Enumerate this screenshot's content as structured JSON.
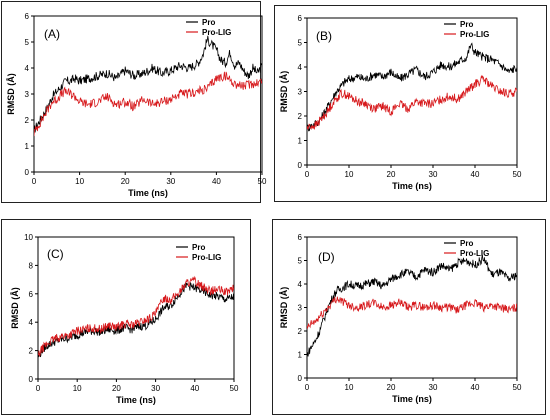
{
  "chart_data": [
    {
      "type": "line",
      "panel_label": "(A)",
      "xlabel": "Time (ns)",
      "ylabel": "RMSD (Å)",
      "xlim": [
        0,
        50
      ],
      "ylim": [
        0,
        6
      ],
      "xticks": [
        0,
        10,
        20,
        30,
        40,
        50
      ],
      "yticks": [
        0,
        1,
        2,
        3,
        4,
        5,
        6
      ],
      "legend": "top-right",
      "series": [
        {
          "name": "Pro",
          "color": "#000000",
          "x": [
            0,
            1,
            2,
            3,
            4,
            5,
            6,
            7,
            8,
            9,
            10,
            12,
            14,
            16,
            18,
            20,
            22,
            24,
            26,
            28,
            30,
            32,
            34,
            36,
            37,
            38,
            39,
            40,
            41,
            42,
            43,
            44,
            45,
            46,
            47,
            48,
            49,
            50
          ],
          "y": [
            1.6,
            1.9,
            2.2,
            2.5,
            2.9,
            3.1,
            3.3,
            3.5,
            3.5,
            3.6,
            3.5,
            3.6,
            3.7,
            3.8,
            3.6,
            3.9,
            3.7,
            3.8,
            4.0,
            3.8,
            3.9,
            4.1,
            4.0,
            4.2,
            4.5,
            5.1,
            4.9,
            4.7,
            4.3,
            4.2,
            4.6,
            4.1,
            4.2,
            3.9,
            3.7,
            4.0,
            3.8,
            4.1
          ]
        },
        {
          "name": "Pro-LIG",
          "color": "#d7191c",
          "x": [
            0,
            1,
            2,
            3,
            4,
            5,
            6,
            7,
            8,
            9,
            10,
            12,
            14,
            16,
            18,
            20,
            22,
            24,
            26,
            28,
            30,
            32,
            34,
            36,
            38,
            40,
            42,
            44,
            46,
            48,
            50
          ],
          "y": [
            1.5,
            1.8,
            2.1,
            2.4,
            2.7,
            2.8,
            3.0,
            3.1,
            3.0,
            2.9,
            2.7,
            2.6,
            2.7,
            2.9,
            2.6,
            2.7,
            2.5,
            2.8,
            2.6,
            2.7,
            2.8,
            3.0,
            3.0,
            3.1,
            3.2,
            3.6,
            3.7,
            3.4,
            3.3,
            3.4,
            3.5
          ]
        }
      ]
    },
    {
      "type": "line",
      "panel_label": "(B)",
      "xlabel": "Time (ns)",
      "ylabel": "RMSD (Å)",
      "xlim": [
        0,
        50
      ],
      "ylim": [
        0,
        6
      ],
      "xticks": [
        0,
        10,
        20,
        30,
        40,
        50
      ],
      "yticks": [
        0,
        1,
        2,
        3,
        4,
        5,
        6
      ],
      "legend": "top-right",
      "series": [
        {
          "name": "Pro",
          "color": "#000000",
          "x": [
            0,
            1,
            2,
            3,
            4,
            5,
            6,
            7,
            8,
            9,
            10,
            12,
            14,
            16,
            18,
            20,
            22,
            24,
            26,
            28,
            30,
            32,
            34,
            36,
            38,
            39,
            40,
            42,
            44,
            46,
            48,
            50
          ],
          "y": [
            1.5,
            1.6,
            1.7,
            1.8,
            2.1,
            2.4,
            2.7,
            3.0,
            3.2,
            3.4,
            3.5,
            3.6,
            3.5,
            3.7,
            3.6,
            3.8,
            3.5,
            3.7,
            3.9,
            3.6,
            3.8,
            4.1,
            4.0,
            4.2,
            4.4,
            4.9,
            4.6,
            4.4,
            4.3,
            4.1,
            3.8,
            4.0
          ]
        },
        {
          "name": "Pro-LIG",
          "color": "#d7191c",
          "x": [
            0,
            1,
            2,
            3,
            4,
            5,
            6,
            7,
            8,
            9,
            10,
            12,
            14,
            16,
            18,
            20,
            22,
            24,
            26,
            28,
            30,
            32,
            34,
            36,
            38,
            40,
            42,
            44,
            46,
            48,
            50
          ],
          "y": [
            1.5,
            1.6,
            1.6,
            1.8,
            2.0,
            2.2,
            2.5,
            2.7,
            2.9,
            2.9,
            2.8,
            2.6,
            2.5,
            2.3,
            2.4,
            2.2,
            2.5,
            2.3,
            2.6,
            2.5,
            2.5,
            2.7,
            2.8,
            2.7,
            3.0,
            3.3,
            3.5,
            3.2,
            3.0,
            2.9,
            3.0
          ]
        }
      ]
    },
    {
      "type": "line",
      "panel_label": "(C)",
      "xlabel": "Time (ns)",
      "ylabel": "RMSD (Å)",
      "xlim": [
        0,
        50
      ],
      "ylim": [
        0,
        10
      ],
      "xticks": [
        0,
        10,
        20,
        30,
        40,
        50
      ],
      "yticks": [
        0,
        2,
        4,
        6,
        8,
        10
      ],
      "legend": "top-right",
      "series": [
        {
          "name": "Pro",
          "color": "#000000",
          "x": [
            0,
            1,
            2,
            4,
            6,
            8,
            10,
            12,
            14,
            16,
            18,
            20,
            22,
            24,
            26,
            28,
            30,
            32,
            34,
            36,
            38,
            40,
            42,
            44,
            46,
            48,
            50
          ],
          "y": [
            1.5,
            2.0,
            2.3,
            2.6,
            2.8,
            2.9,
            3.1,
            3.3,
            3.4,
            3.3,
            3.5,
            3.4,
            3.6,
            3.5,
            3.7,
            3.8,
            4.2,
            5.0,
            5.2,
            6.0,
            6.6,
            6.4,
            6.2,
            5.9,
            5.8,
            5.6,
            5.8
          ]
        },
        {
          "name": "Pro-LIG",
          "color": "#d7191c",
          "x": [
            0,
            1,
            2,
            4,
            6,
            8,
            10,
            12,
            14,
            16,
            18,
            20,
            22,
            24,
            26,
            28,
            30,
            32,
            34,
            36,
            38,
            40,
            42,
            44,
            46,
            48,
            50
          ],
          "y": [
            1.6,
            2.1,
            2.4,
            2.8,
            3.0,
            3.1,
            3.4,
            3.5,
            3.6,
            3.5,
            3.8,
            3.6,
            3.9,
            3.8,
            4.0,
            4.2,
            4.6,
            5.7,
            5.6,
            6.1,
            6.8,
            6.9,
            6.5,
            6.2,
            6.3,
            6.1,
            6.4
          ]
        }
      ]
    },
    {
      "type": "line",
      "panel_label": "(D)",
      "xlabel": "Time (ns)",
      "ylabel": "RMSD (Å)",
      "xlim": [
        0,
        50
      ],
      "ylim": [
        0,
        6
      ],
      "xticks": [
        0,
        10,
        20,
        30,
        40,
        50
      ],
      "yticks": [
        0,
        1,
        2,
        3,
        4,
        5,
        6
      ],
      "legend": "top-right",
      "series": [
        {
          "name": "Pro",
          "color": "#000000",
          "x": [
            0,
            1,
            2,
            3,
            4,
            5,
            6,
            7,
            8,
            9,
            10,
            12,
            14,
            16,
            18,
            20,
            22,
            24,
            26,
            28,
            30,
            32,
            34,
            36,
            38,
            40,
            42,
            44,
            46,
            48,
            50
          ],
          "y": [
            1.0,
            1.3,
            1.6,
            2.0,
            2.5,
            3.0,
            3.4,
            3.7,
            3.8,
            3.9,
            4.0,
            3.9,
            4.0,
            4.1,
            3.9,
            4.2,
            4.4,
            4.5,
            4.3,
            4.6,
            4.5,
            4.8,
            4.6,
            4.9,
            5.0,
            4.8,
            5.1,
            4.4,
            4.5,
            4.2,
            4.4
          ]
        },
        {
          "name": "Pro-LIG",
          "color": "#d7191c",
          "x": [
            0,
            1,
            2,
            3,
            4,
            5,
            6,
            7,
            8,
            9,
            10,
            12,
            14,
            16,
            18,
            20,
            22,
            24,
            26,
            28,
            30,
            32,
            34,
            36,
            38,
            40,
            42,
            44,
            46,
            48,
            50
          ],
          "y": [
            2.1,
            2.3,
            2.4,
            2.6,
            2.8,
            3.0,
            3.2,
            3.4,
            3.3,
            3.2,
            3.1,
            3.0,
            3.1,
            3.2,
            3.0,
            3.1,
            3.2,
            3.0,
            3.1,
            3.0,
            3.1,
            3.0,
            3.0,
            2.9,
            3.1,
            3.2,
            3.0,
            3.1,
            3.0,
            2.9,
            3.0
          ]
        }
      ]
    }
  ]
}
